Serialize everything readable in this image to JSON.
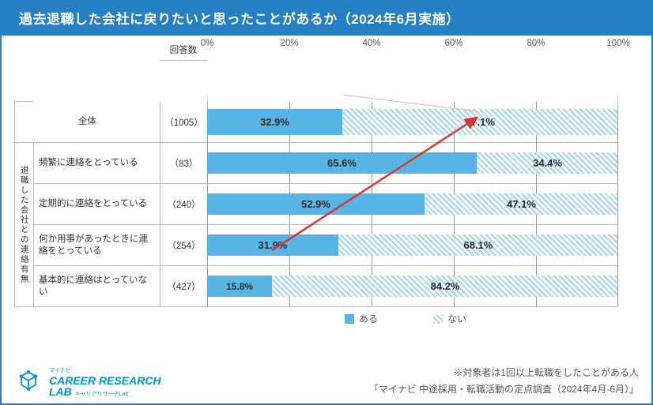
{
  "colors": {
    "header_bg": "#2480c2",
    "border": "#2480c2",
    "bar_yes": "#58b4e5",
    "bar_no": "#a4d4ee",
    "arrow": "#d9372d",
    "connector": "#bfbfbf"
  },
  "header": {
    "title": "過去退職した会社に戻りたいと思ったことがあるか（2024年6月実施）"
  },
  "chart": {
    "axis": {
      "min": 0,
      "max": 100,
      "step": 20,
      "ticks": [
        "0%",
        "20%",
        "40%",
        "60%",
        "80%",
        "100%"
      ]
    },
    "column_header": "回答数",
    "group_side_label": "退職した会社との連絡有無",
    "legend": {
      "yes": "ある",
      "no": "ない"
    },
    "rows": [
      {
        "label": "全体",
        "n": "（1005）",
        "yes": 32.9,
        "no": 67.1,
        "group": false
      },
      {
        "label": "頻繁に連絡をとっている",
        "n": "（83）",
        "yes": 65.6,
        "no": 34.4,
        "group": true
      },
      {
        "label": "定期的に連絡をとっている",
        "n": "（240）",
        "yes": 52.9,
        "no": 47.1,
        "group": true
      },
      {
        "label": "何か用事があったときに連絡をとっている",
        "n": "（254）",
        "yes": 31.9,
        "no": 68.1,
        "group": true
      },
      {
        "label": "基本的に連絡はとっていない",
        "n": "（427）",
        "yes": 15.8,
        "no": 84.2,
        "group": true
      }
    ],
    "arrow": {
      "x1_pct": 15.8,
      "y1_row": 4,
      "x2_pct": 65.6,
      "y2_row": 1
    }
  },
  "footer": {
    "note": "※対象者は1回以上転職をしたことがある人",
    "source": "「マイナビ 中途採用・転職活動の定点調査（2024年4月-6月）」",
    "logo": {
      "tiny": "マイナビ",
      "main": "CAREER RESEARCH",
      "sub": "LAB",
      "tagline": "キャリアリサーチLab"
    }
  }
}
